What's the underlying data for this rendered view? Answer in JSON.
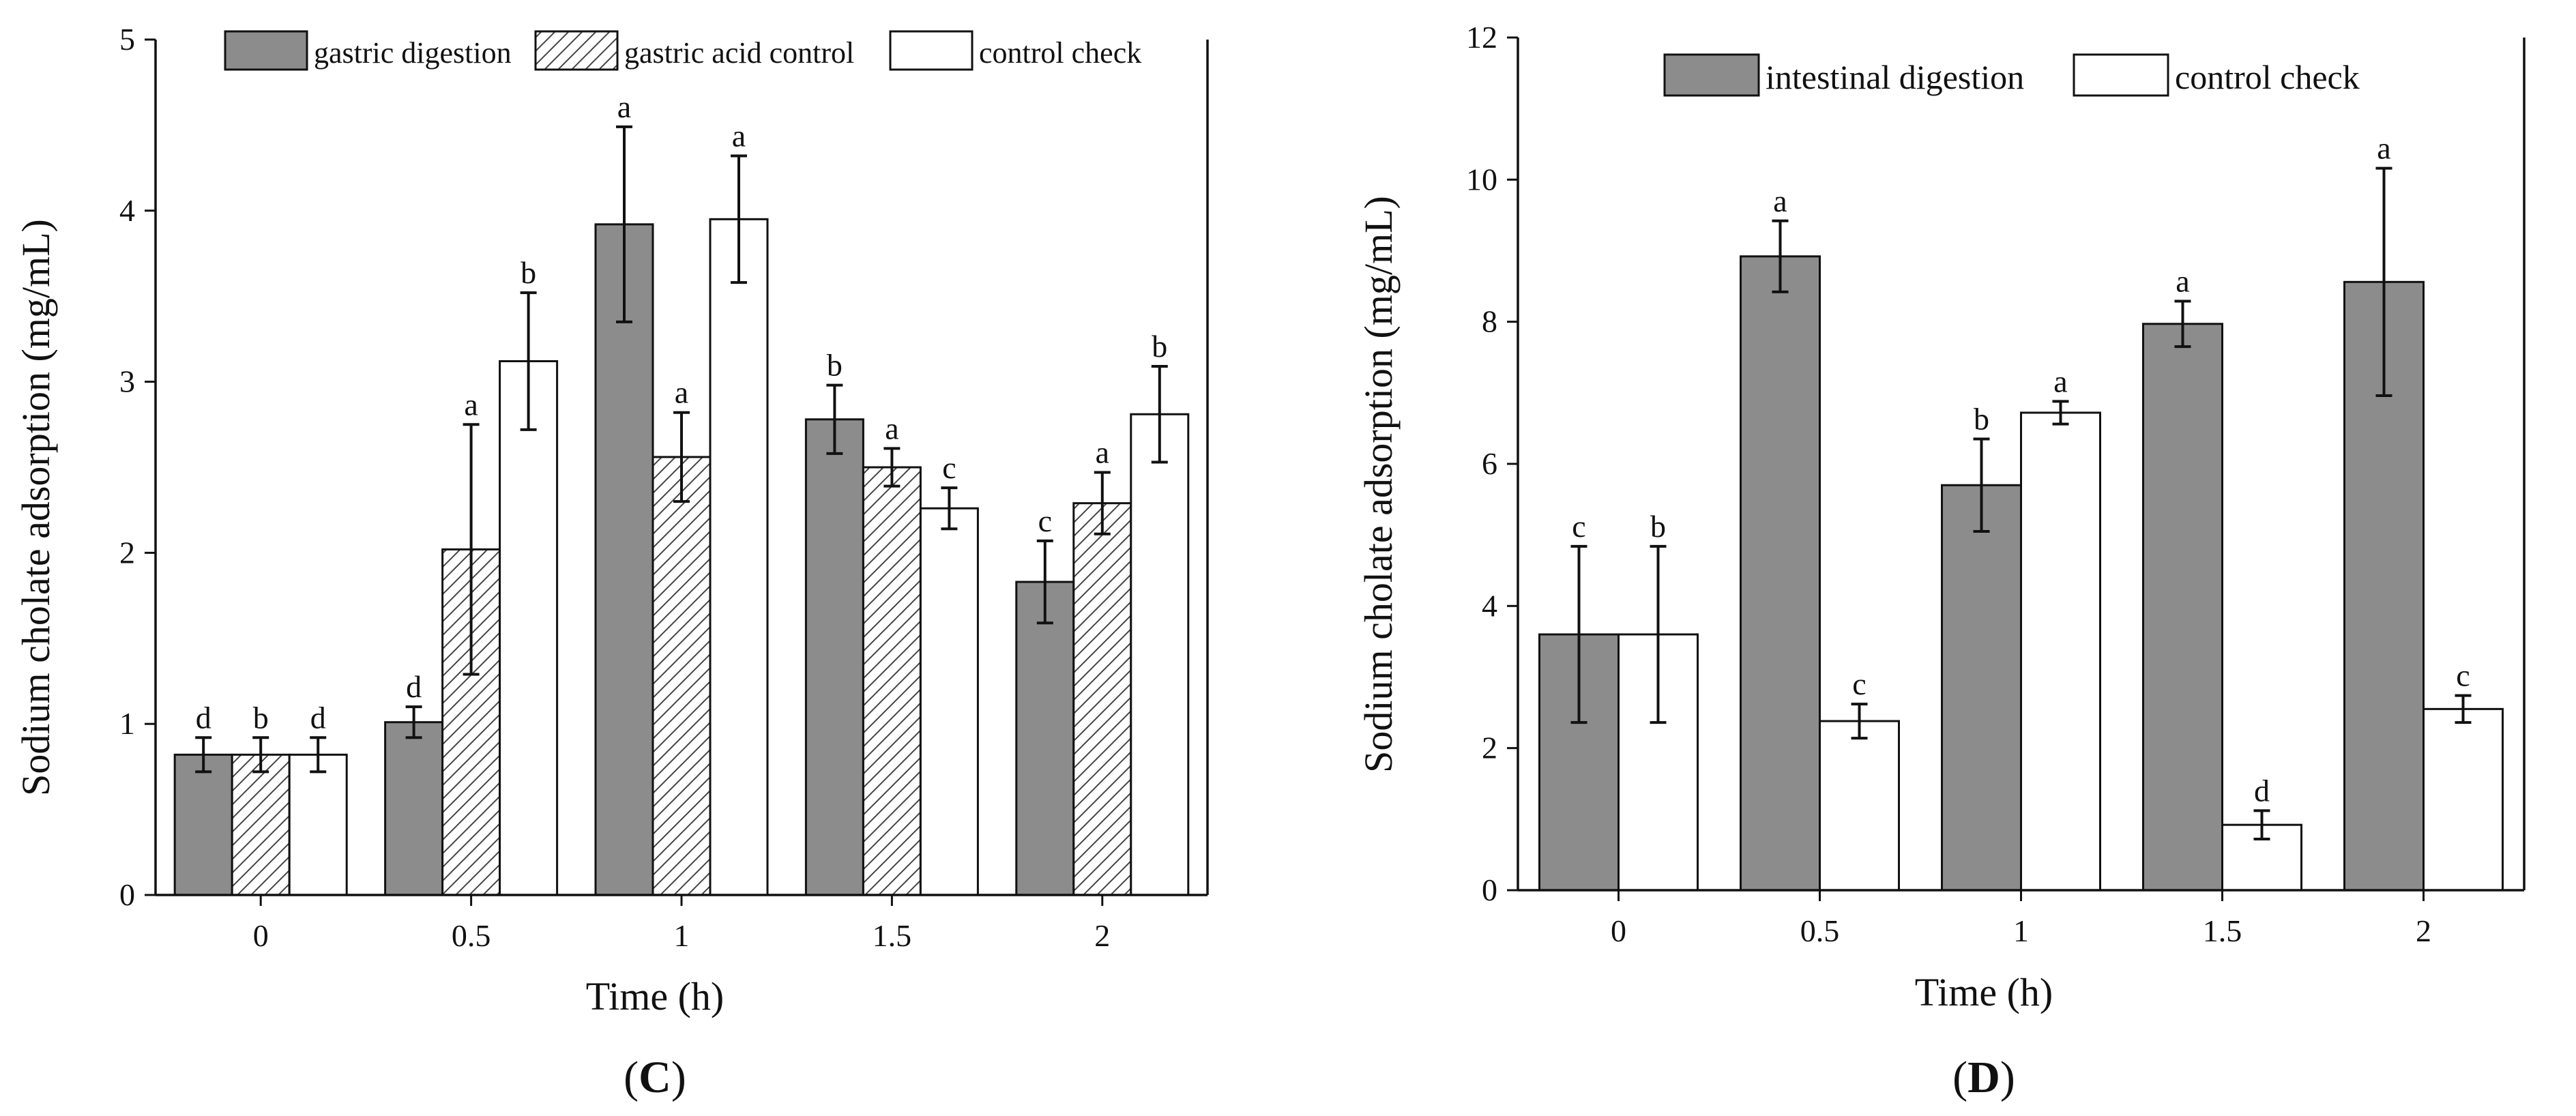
{
  "colors": {
    "gray_fill": "#8c8c8c",
    "white_fill": "#ffffff",
    "ink": "#111111",
    "hatch": "#444444"
  },
  "chart_data": [
    {
      "type": "bar",
      "panel_label_open": "(",
      "panel_letter": "C",
      "panel_label_close": ")",
      "xlabel": "Time (h)",
      "ylabel": "Sodium cholate adsorption (mg/mL)",
      "ylim": [
        0,
        5
      ],
      "yticks": [
        "0",
        "1",
        "2",
        "3",
        "4",
        "5"
      ],
      "categories": [
        "0",
        "0.5",
        "1",
        "1.5",
        "2"
      ],
      "legend_position": "top",
      "series": [
        {
          "name": "gastric digestion",
          "style": "gray",
          "values": [
            0.82,
            1.01,
            3.92,
            2.78,
            1.83
          ],
          "errors": [
            0.1,
            0.09,
            0.57,
            0.2,
            0.24
          ],
          "letters": [
            "d",
            "d",
            "a",
            "b",
            "c"
          ]
        },
        {
          "name": "gastric acid control",
          "style": "hatch",
          "values": [
            0.82,
            2.02,
            2.56,
            2.5,
            2.29
          ],
          "errors": [
            0.1,
            0.73,
            0.26,
            0.11,
            0.18
          ],
          "letters": [
            "b",
            "a",
            "a",
            "a",
            "a"
          ]
        },
        {
          "name": "control check",
          "style": "white",
          "values": [
            0.82,
            3.12,
            3.95,
            2.26,
            2.81
          ],
          "errors": [
            0.1,
            0.4,
            0.37,
            0.12,
            0.28
          ],
          "letters": [
            "d",
            "b",
            "a",
            "c",
            "b"
          ]
        }
      ]
    },
    {
      "type": "bar",
      "panel_label_open": "(",
      "panel_letter": "D",
      "panel_label_close": ")",
      "xlabel": "Time (h)",
      "ylabel": "Sodium cholate adsorption (mg/mL)",
      "ylim": [
        0,
        12
      ],
      "yticks": [
        "0",
        "2",
        "4",
        "6",
        "8",
        "10",
        "12"
      ],
      "categories": [
        "0",
        "0.5",
        "1",
        "1.5",
        "2"
      ],
      "legend_position": "top",
      "series": [
        {
          "name": "intestinal digestion",
          "style": "gray",
          "values": [
            3.6,
            8.92,
            5.7,
            7.97,
            8.56
          ],
          "errors": [
            1.24,
            0.5,
            0.65,
            0.32,
            1.6
          ],
          "letters": [
            "c",
            "a",
            "b",
            "a",
            "a"
          ]
        },
        {
          "name": "control check",
          "style": "white",
          "values": [
            3.6,
            2.38,
            6.72,
            0.92,
            2.55
          ],
          "errors": [
            1.24,
            0.24,
            0.16,
            0.2,
            0.19
          ],
          "letters": [
            "b",
            "c",
            "a",
            "d",
            "c"
          ]
        }
      ]
    }
  ]
}
